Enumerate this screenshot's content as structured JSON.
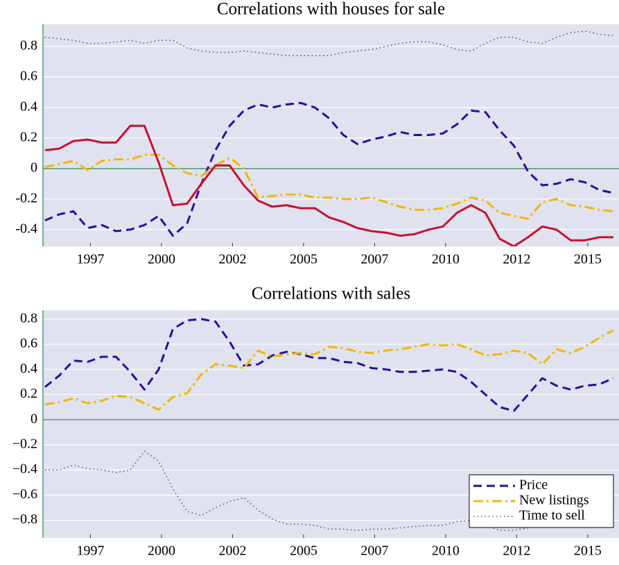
{
  "chart_data": [
    {
      "type": "line",
      "title": "Correlations with houses for sale",
      "x": [
        1995.9,
        1996.4,
        1996.9,
        1997.4,
        1997.9,
        1998.4,
        1998.9,
        1999.4,
        1999.9,
        2000.4,
        2000.9,
        2001.4,
        2001.9,
        2002.4,
        2002.9,
        2003.4,
        2003.9,
        2004.4,
        2004.9,
        2005.4,
        2005.9,
        2006.4,
        2006.9,
        2007.4,
        2007.9,
        2008.4,
        2008.9,
        2009.4,
        2009.9,
        2010.4,
        2010.9,
        2011.4,
        2011.9,
        2012.4,
        2012.9,
        2013.4,
        2013.9,
        2014.4,
        2014.9,
        2015.4,
        2015.9
      ],
      "series": [
        {
          "color": "#2f0aa0",
          "style": "dashed",
          "values": [
            -0.34,
            -0.3,
            -0.28,
            -0.39,
            -0.37,
            -0.41,
            -0.4,
            -0.37,
            -0.31,
            -0.44,
            -0.36,
            -0.1,
            0.12,
            0.28,
            0.38,
            0.42,
            0.4,
            0.42,
            0.43,
            0.4,
            0.33,
            0.22,
            0.16,
            0.19,
            0.21,
            0.24,
            0.22,
            0.22,
            0.23,
            0.29,
            0.38,
            0.37,
            0.25,
            0.15,
            -0.02,
            -0.11,
            -0.1,
            -0.07,
            -0.09,
            -0.14,
            -0.16
          ]
        },
        {
          "color": "#f2b705",
          "style": "dashdot",
          "values": [
            0.01,
            0.03,
            0.05,
            -0.01,
            0.05,
            0.06,
            0.06,
            0.09,
            0.09,
            0.02,
            -0.03,
            -0.05,
            0.02,
            0.07,
            0.0,
            -0.19,
            -0.18,
            -0.17,
            -0.17,
            -0.19,
            -0.19,
            -0.2,
            -0.2,
            -0.19,
            -0.22,
            -0.25,
            -0.27,
            -0.27,
            -0.26,
            -0.23,
            -0.19,
            -0.21,
            -0.29,
            -0.31,
            -0.33,
            -0.22,
            -0.2,
            -0.24,
            -0.25,
            -0.27,
            -0.28
          ]
        },
        {
          "color": "#555555",
          "style": "dotted",
          "values": [
            0.86,
            0.85,
            0.84,
            0.82,
            0.82,
            0.83,
            0.84,
            0.82,
            0.84,
            0.84,
            0.79,
            0.77,
            0.76,
            0.76,
            0.77,
            0.76,
            0.75,
            0.74,
            0.74,
            0.74,
            0.74,
            0.76,
            0.77,
            0.78,
            0.8,
            0.82,
            0.83,
            0.83,
            0.81,
            0.78,
            0.77,
            0.82,
            0.86,
            0.86,
            0.83,
            0.82,
            0.86,
            0.89,
            0.9,
            0.88,
            0.87
          ]
        },
        {
          "color": "#c8102e",
          "style": "solid",
          "values": [
            0.12,
            0.13,
            0.18,
            0.19,
            0.17,
            0.17,
            0.28,
            0.28,
            0.04,
            -0.24,
            -0.23,
            -0.1,
            0.02,
            0.02,
            -0.11,
            -0.21,
            -0.25,
            -0.24,
            -0.26,
            -0.26,
            -0.32,
            -0.35,
            -0.39,
            -0.41,
            -0.42,
            -0.44,
            -0.43,
            -0.4,
            -0.38,
            -0.29,
            -0.24,
            -0.29,
            -0.46,
            -0.51,
            -0.45,
            -0.38,
            -0.4,
            -0.47,
            -0.47,
            -0.45,
            -0.45
          ]
        }
      ],
      "xlim": [
        1995.83,
        2016.1
      ],
      "xticks": [
        {
          "value": 1997.5,
          "label": "1997"
        },
        2000,
        {
          "value": 2002.5,
          "label": "2002"
        },
        2005,
        {
          "value": 2007.5,
          "label": "2007"
        },
        2010,
        {
          "value": 2012.5,
          "label": "2012"
        },
        2015
      ],
      "ylim": [
        -0.51,
        0.945
      ],
      "yticks": [
        -0.4,
        -0.2,
        0,
        0.2,
        0.4,
        0.6,
        0.8
      ],
      "grid": true,
      "background": "#e0e2ef",
      "zero_line_color": "#4a9a70"
    },
    {
      "type": "line",
      "title": "Correlations with sales",
      "x": [
        1995.9,
        1996.4,
        1996.9,
        1997.4,
        1997.9,
        1998.4,
        1998.9,
        1999.4,
        1999.9,
        2000.4,
        2000.9,
        2001.4,
        2001.9,
        2002.4,
        2002.9,
        2003.4,
        2003.9,
        2004.4,
        2004.9,
        2005.4,
        2005.9,
        2006.4,
        2006.9,
        2007.4,
        2007.9,
        2008.4,
        2008.9,
        2009.4,
        2009.9,
        2010.4,
        2010.9,
        2011.4,
        2011.9,
        2012.4,
        2012.9,
        2013.4,
        2013.9,
        2014.4,
        2014.9,
        2015.4,
        2015.9
      ],
      "series": [
        {
          "name": "Price",
          "color": "#2f0aa0",
          "style": "dashed",
          "values": [
            0.26,
            0.35,
            0.47,
            0.46,
            0.5,
            0.5,
            0.38,
            0.24,
            0.4,
            0.72,
            0.79,
            0.8,
            0.78,
            0.62,
            0.43,
            0.44,
            0.51,
            0.54,
            0.52,
            0.49,
            0.49,
            0.46,
            0.45,
            0.41,
            0.4,
            0.38,
            0.38,
            0.39,
            0.4,
            0.38,
            0.3,
            0.2,
            0.1,
            0.07,
            0.2,
            0.33,
            0.27,
            0.24,
            0.27,
            0.28,
            0.33
          ]
        },
        {
          "name": "New listings",
          "color": "#f2b705",
          "style": "dashdot",
          "values": [
            0.12,
            0.14,
            0.17,
            0.13,
            0.15,
            0.19,
            0.18,
            0.13,
            0.08,
            0.18,
            0.21,
            0.36,
            0.44,
            0.43,
            0.41,
            0.55,
            0.5,
            0.52,
            0.53,
            0.52,
            0.58,
            0.57,
            0.54,
            0.53,
            0.55,
            0.56,
            0.58,
            0.6,
            0.59,
            0.6,
            0.56,
            0.51,
            0.52,
            0.55,
            0.53,
            0.44,
            0.56,
            0.53,
            0.58,
            0.65,
            0.71
          ]
        },
        {
          "name": "Time to sell",
          "color": "#555555",
          "style": "dotted",
          "values": [
            -0.4,
            -0.4,
            -0.36,
            -0.39,
            -0.4,
            -0.42,
            -0.4,
            -0.25,
            -0.33,
            -0.55,
            -0.73,
            -0.76,
            -0.7,
            -0.65,
            -0.62,
            -0.72,
            -0.79,
            -0.83,
            -0.83,
            -0.84,
            -0.87,
            -0.87,
            -0.88,
            -0.87,
            -0.87,
            -0.86,
            -0.85,
            -0.84,
            -0.84,
            -0.81,
            -0.8,
            -0.84,
            -0.88,
            -0.88,
            -0.86,
            -0.82,
            -0.81,
            -0.81,
            -0.8,
            -0.81,
            -0.82
          ]
        }
      ],
      "xlim": [
        1995.83,
        2016.1
      ],
      "xticks": [
        {
          "value": 1997.5,
          "label": "1997"
        },
        2000,
        {
          "value": 2002.5,
          "label": "2002"
        },
        2005,
        {
          "value": 2007.5,
          "label": "2007"
        },
        2010,
        {
          "value": 2012.5,
          "label": "2012"
        },
        2015
      ],
      "ylim": [
        -0.94,
        0.87
      ],
      "yticks": [
        {
          "value": -0.8,
          "label": "−0.8"
        },
        {
          "value": -0.6,
          "label": "−0.6"
        },
        {
          "value": -0.4,
          "label": "−0.4"
        },
        {
          "value": -0.2,
          "label": "−0.2"
        },
        0,
        0.2,
        0.4,
        0.6,
        0.8
      ],
      "grid": true,
      "background": "#e0e2ef",
      "zero_line_color": "#4a9a70",
      "legend": "lower right"
    }
  ]
}
